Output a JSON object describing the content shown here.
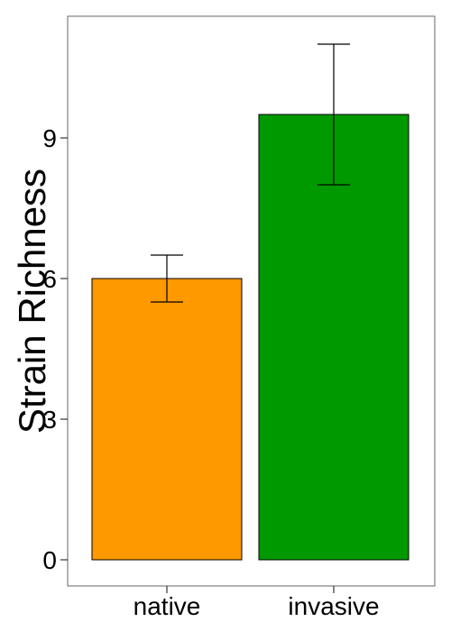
{
  "chart_data": {
    "type": "bar",
    "title": "",
    "xlabel": "",
    "ylabel": "Strain Richness",
    "ylim": [
      0,
      12
    ],
    "yticks": [
      0,
      3,
      6,
      9
    ],
    "categories": [
      "native",
      "invasive"
    ],
    "values": [
      6.0,
      9.5
    ],
    "error_lower": [
      5.5,
      8.0
    ],
    "error_upper": [
      6.5,
      11.0
    ],
    "colors": [
      "#FF9900",
      "#009900"
    ],
    "grid": false,
    "legend": "none"
  }
}
